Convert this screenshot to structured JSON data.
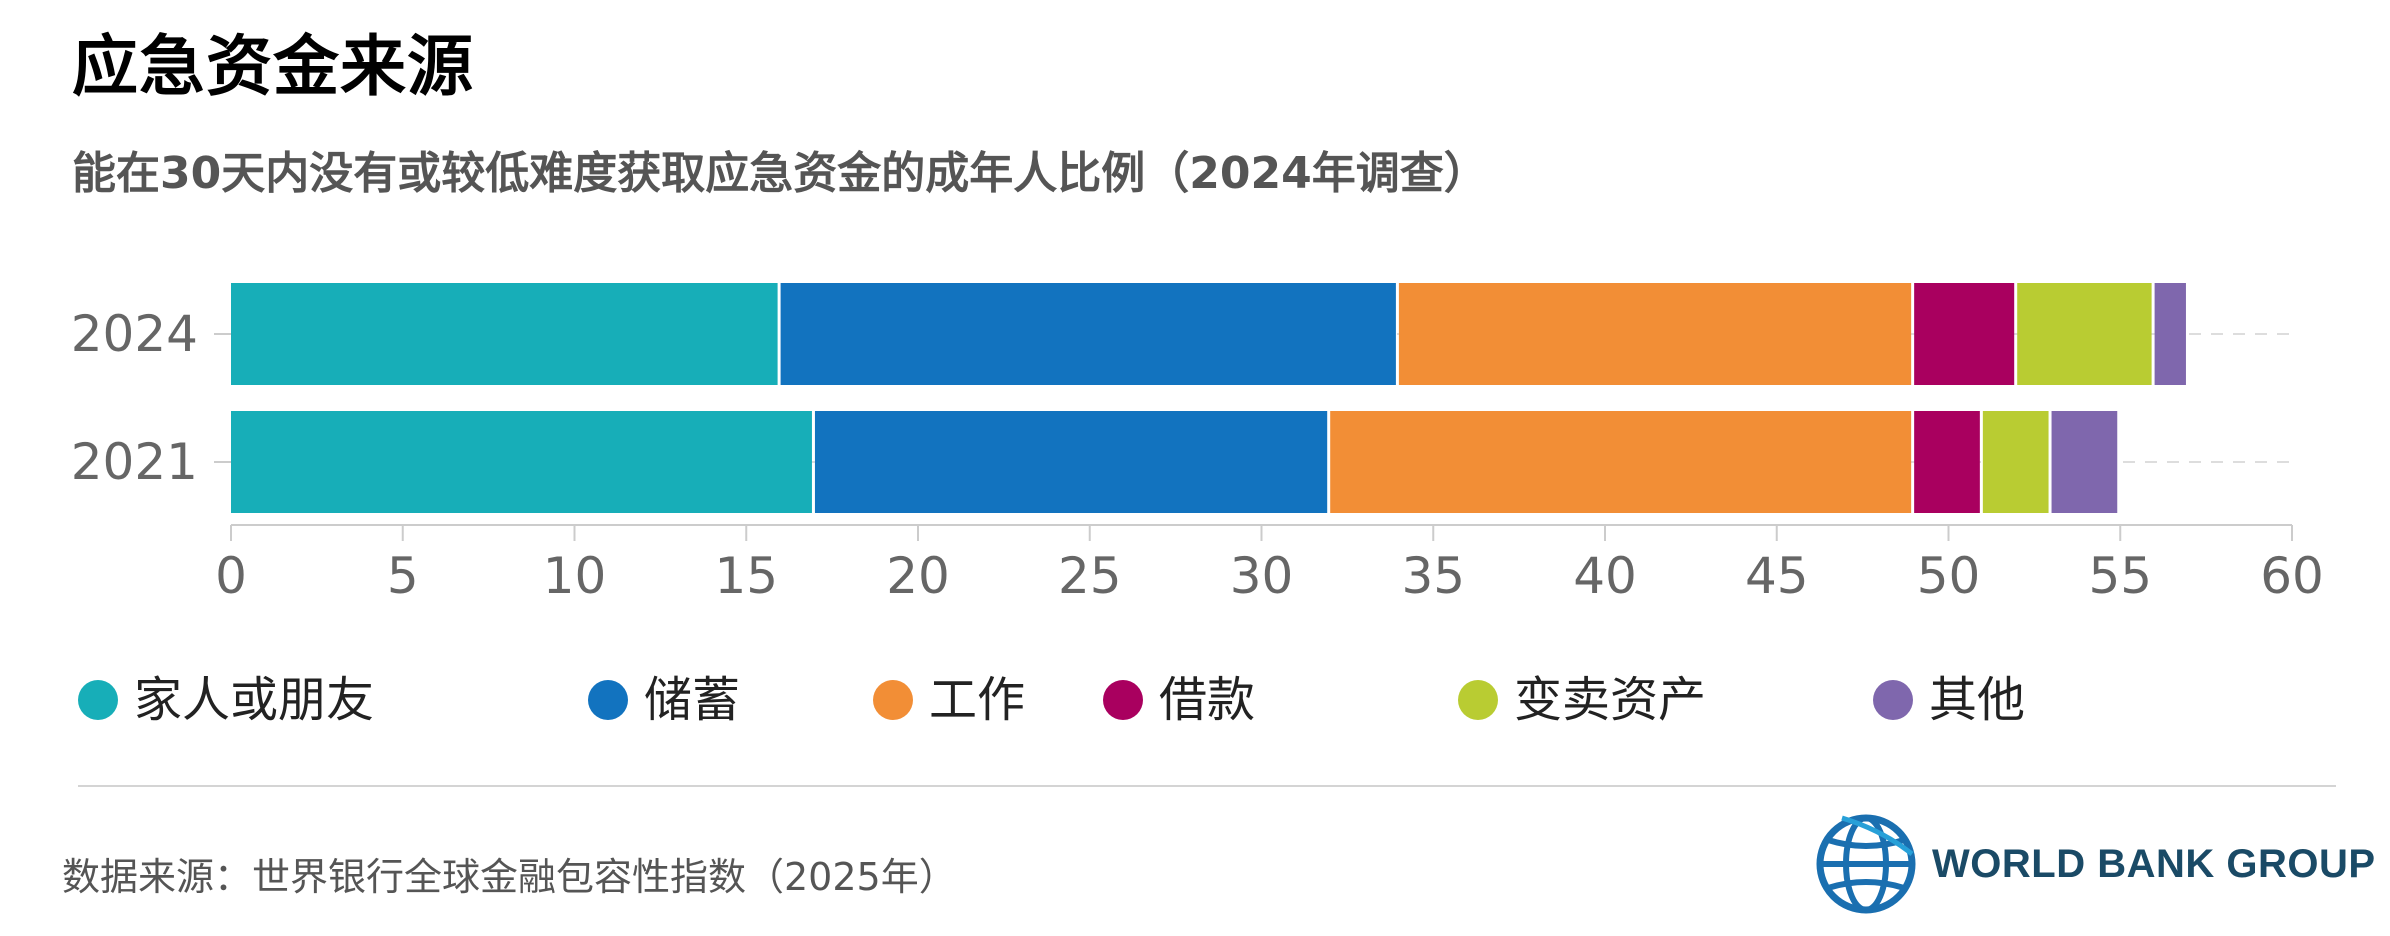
{
  "title": "应急资金来源",
  "subtitle": "能在30天内没有或较低难度获取应急资金的成年人比例（2024年调查）",
  "source": "数据来源：世界银行全球金融包容性指数（2025年）",
  "logo": {
    "text": "WORLD BANK GROUP",
    "icon": "globe-icon"
  },
  "chart_data": {
    "type": "bar",
    "orientation": "horizontal",
    "stacked": true,
    "categories": [
      "2024",
      "2021"
    ],
    "series": [
      {
        "name": "家人或朋友",
        "color": "#17aeb8",
        "values": [
          16,
          17
        ]
      },
      {
        "name": "储蓄",
        "color": "#1273bf",
        "values": [
          18,
          15
        ]
      },
      {
        "name": "工作",
        "color": "#f28e36",
        "values": [
          15,
          17
        ]
      },
      {
        "name": "借款",
        "color": "#a9005f",
        "values": [
          3,
          2
        ]
      },
      {
        "name": "变卖资产",
        "color": "#b9cc32",
        "values": [
          4,
          2
        ]
      },
      {
        "name": "其他",
        "color": "#7f67ad",
        "values": [
          1,
          2
        ]
      }
    ],
    "xlim": [
      0,
      60
    ],
    "xticks": [
      0,
      5,
      10,
      15,
      20,
      25,
      30,
      35,
      40,
      45,
      50,
      55,
      60
    ],
    "xlabel": "",
    "ylabel": "",
    "grid": "dashed row guides",
    "legend": "bottom"
  }
}
